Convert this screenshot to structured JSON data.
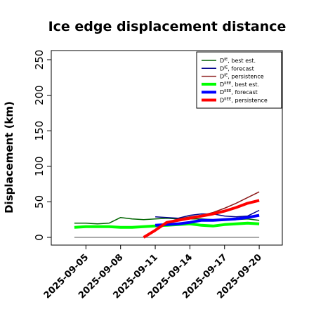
{
  "chart_data": {
    "type": "line",
    "title": "Ice edge displacement distance",
    "ylabel": "Displacement (km)",
    "xlabel": "",
    "ylim": [
      0,
      260
    ],
    "xlim": [
      "2025-09-02",
      "2025-09-22"
    ],
    "yticks": [
      0,
      50,
      100,
      150,
      200,
      250
    ],
    "xticks": [
      {
        "date": "2025-09-05",
        "label": "2025-09-05",
        "color": "#000000"
      },
      {
        "date": "2025-09-08",
        "label": "2025-09-08",
        "color": "#000000"
      },
      {
        "date": "2025-09-11",
        "label": "2025-09-11",
        "color": "#228b22"
      },
      {
        "date": "2025-09-14",
        "label": "2025-09-14",
        "color": "#000000"
      },
      {
        "date": "2025-09-17",
        "label": "2025-09-17",
        "color": "#000000"
      },
      {
        "date": "2025-09-20",
        "label": "2025-09-20",
        "color": "#000000"
      }
    ],
    "zero_line": {
      "from": "2025-09-04",
      "to": "2025-09-20",
      "value": 0,
      "color": "#555555"
    },
    "legend_position": "top-right",
    "series": [
      {
        "name": "D^IE, best est.",
        "label_main": "D",
        "label_sup": "IE",
        "label_rest": ", best est.",
        "color": "#006400",
        "width": 1.5,
        "points": [
          [
            "2025-09-04",
            20
          ],
          [
            "2025-09-05",
            20
          ],
          [
            "2025-09-06",
            19
          ],
          [
            "2025-09-07",
            20
          ],
          [
            "2025-09-08",
            28
          ],
          [
            "2025-09-09",
            26
          ],
          [
            "2025-09-10",
            25
          ],
          [
            "2025-09-11",
            26
          ],
          [
            "2025-09-12",
            27
          ],
          [
            "2025-09-13",
            26
          ],
          [
            "2025-09-14",
            26
          ],
          [
            "2025-09-15",
            26
          ],
          [
            "2025-09-16",
            25
          ],
          [
            "2025-09-17",
            24
          ],
          [
            "2025-09-18",
            25
          ],
          [
            "2025-09-19",
            26
          ],
          [
            "2025-09-20",
            24
          ]
        ]
      },
      {
        "name": "D^IE, forecast",
        "label_main": "D",
        "label_sup": "IE",
        "label_rest": ", forecast",
        "color": "#00008b",
        "width": 1.5,
        "points": [
          [
            "2025-09-11",
            29
          ],
          [
            "2025-09-12",
            28
          ],
          [
            "2025-09-13",
            27
          ],
          [
            "2025-09-14",
            31
          ],
          [
            "2025-09-15",
            33
          ],
          [
            "2025-09-16",
            33
          ],
          [
            "2025-09-17",
            30
          ],
          [
            "2025-09-18",
            29
          ],
          [
            "2025-09-19",
            30
          ],
          [
            "2025-09-20",
            38
          ]
        ]
      },
      {
        "name": "D^IE, persistence",
        "label_main": "D",
        "label_sup": "IE",
        "label_rest": ", persistence",
        "color": "#8b1a1a",
        "width": 1.5,
        "points": [
          [
            "2025-09-10",
            0
          ],
          [
            "2025-09-11",
            9
          ],
          [
            "2025-09-12",
            21
          ],
          [
            "2025-09-13",
            26
          ],
          [
            "2025-09-14",
            29
          ],
          [
            "2025-09-15",
            31
          ],
          [
            "2025-09-16",
            35
          ],
          [
            "2025-09-17",
            41
          ],
          [
            "2025-09-18",
            48
          ],
          [
            "2025-09-19",
            56
          ],
          [
            "2025-09-20",
            64
          ]
        ]
      },
      {
        "name": "D^IIEE, best est.",
        "label_main": "D",
        "label_sup": "IIEE",
        "label_rest": ", best est.",
        "color": "#00ff00",
        "width": 4,
        "points": [
          [
            "2025-09-04",
            14
          ],
          [
            "2025-09-05",
            15
          ],
          [
            "2025-09-06",
            15
          ],
          [
            "2025-09-07",
            15
          ],
          [
            "2025-09-08",
            14
          ],
          [
            "2025-09-09",
            14
          ],
          [
            "2025-09-10",
            15
          ],
          [
            "2025-09-11",
            16
          ],
          [
            "2025-09-12",
            17
          ],
          [
            "2025-09-13",
            18
          ],
          [
            "2025-09-14",
            19
          ],
          [
            "2025-09-15",
            17
          ],
          [
            "2025-09-16",
            16
          ],
          [
            "2025-09-17",
            18
          ],
          [
            "2025-09-18",
            19
          ],
          [
            "2025-09-19",
            20
          ],
          [
            "2025-09-20",
            19
          ]
        ]
      },
      {
        "name": "D^IIEE, forecast",
        "label_main": "D",
        "label_sup": "IIEE",
        "label_rest": ", forecast",
        "color": "#0000ff",
        "width": 4,
        "points": [
          [
            "2025-09-11",
            17
          ],
          [
            "2025-09-12",
            18
          ],
          [
            "2025-09-13",
            19
          ],
          [
            "2025-09-14",
            21
          ],
          [
            "2025-09-15",
            24
          ],
          [
            "2025-09-16",
            24
          ],
          [
            "2025-09-17",
            25
          ],
          [
            "2025-09-18",
            26
          ],
          [
            "2025-09-19",
            28
          ],
          [
            "2025-09-20",
            31
          ]
        ]
      },
      {
        "name": "D^IIEE, persistence",
        "label_main": "D",
        "label_sup": "IIEE",
        "label_rest": ", persistence",
        "color": "#ff0000",
        "width": 4,
        "points": [
          [
            "2025-09-10",
            0
          ],
          [
            "2025-09-11",
            10
          ],
          [
            "2025-09-12",
            21
          ],
          [
            "2025-09-13",
            24
          ],
          [
            "2025-09-14",
            27
          ],
          [
            "2025-09-15",
            30
          ],
          [
            "2025-09-16",
            33
          ],
          [
            "2025-09-17",
            37
          ],
          [
            "2025-09-18",
            42
          ],
          [
            "2025-09-19",
            48
          ],
          [
            "2025-09-20",
            52
          ]
        ]
      }
    ]
  }
}
